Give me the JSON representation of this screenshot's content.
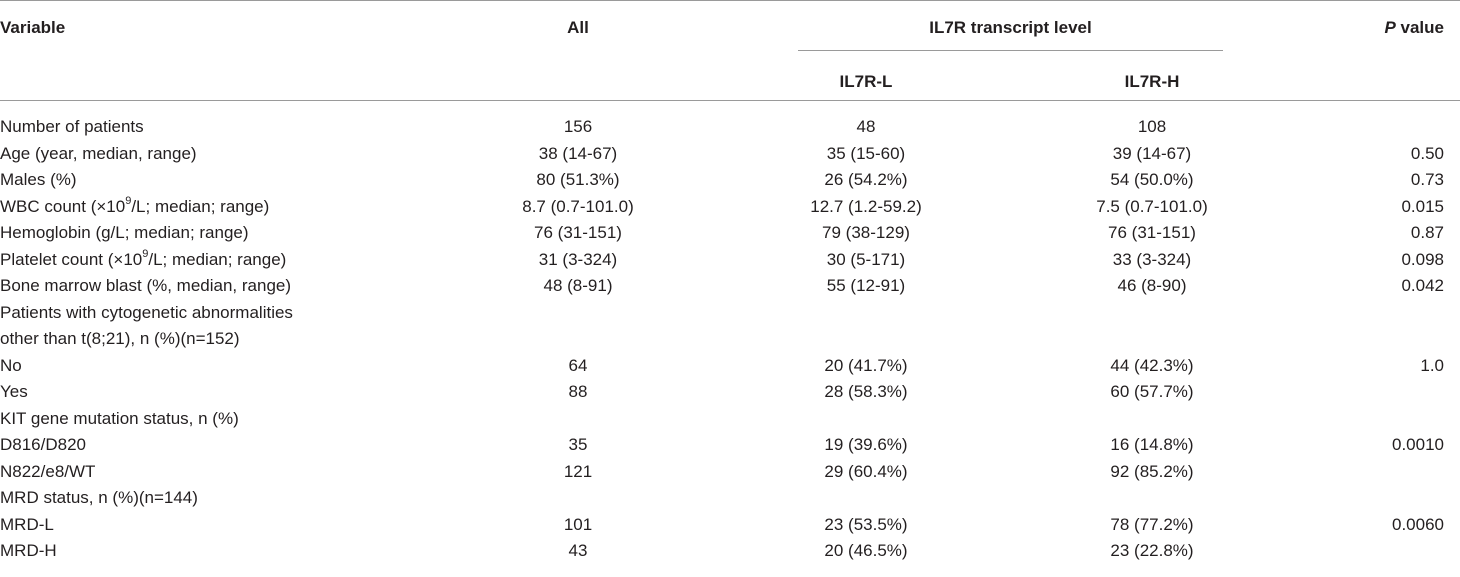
{
  "headers": {
    "variable": "Variable",
    "all": "All",
    "group": "IL7R transcript level",
    "low": "IL7R-L",
    "high": "IL7R-H",
    "p_italic": "P",
    "p_rest": " value"
  },
  "rows": [
    {
      "v": "Number of patients",
      "a": "156",
      "l": "48",
      "h": "108",
      "p": ""
    },
    {
      "v": "Age (year, median, range)",
      "a": "38 (14-67)",
      "l": "35 (15-60)",
      "h": "39 (14-67)",
      "p": "0.50"
    },
    {
      "v": "Males (%)",
      "a": "80 (51.3%)",
      "l": "26 (54.2%)",
      "h": "54 (50.0%)",
      "p": "0.73"
    },
    {
      "v_pre": "WBC count (×10",
      "v_sup": "9",
      "v_post": "/L; median; range)",
      "a": "8.7 (0.7-101.0)",
      "l": "12.7 (1.2-59.2)",
      "h": "7.5 (0.7-101.0)",
      "p": "0.015"
    },
    {
      "v": "Hemoglobin (g/L; median; range)",
      "a": "76 (31-151)",
      "l": "79 (38-129)",
      "h": "76 (31-151)",
      "p": "0.87"
    },
    {
      "v_pre": "Platelet count (×10",
      "v_sup": "9",
      "v_post": "/L; median; range)",
      "a": "31 (3-324)",
      "l": "30 (5-171)",
      "h": "33 (3-324)",
      "p": "0.098"
    },
    {
      "v": "Bone marrow blast (%, median, range)",
      "a": "48 (8-91)",
      "l": "55 (12-91)",
      "h": "46 (8-90)",
      "p": "0.042"
    },
    {
      "v": "Patients with cytogenetic abnormalities",
      "a": "",
      "l": "",
      "h": "",
      "p": ""
    },
    {
      "v": "other than t(8;21), n (%)(n=152)",
      "a": "",
      "l": "",
      "h": "",
      "p": ""
    },
    {
      "v": "No",
      "a": "64",
      "l": "20 (41.7%)",
      "h": "44 (42.3%)",
      "p": "1.0"
    },
    {
      "v": "Yes",
      "a": "88",
      "l": "28 (58.3%)",
      "h": "60 (57.7%)",
      "p": ""
    },
    {
      "v": "KIT gene mutation status, n (%)",
      "a": "",
      "l": "",
      "h": "",
      "p": ""
    },
    {
      "v": "D816/D820",
      "a": "35",
      "l": "19 (39.6%)",
      "h": "16 (14.8%)",
      "p": "0.0010"
    },
    {
      "v": "N822/e8/WT",
      "a": "121",
      "l": "29 (60.4%)",
      "h": "92 (85.2%)",
      "p": ""
    },
    {
      "v": "MRD status, n (%)(n=144)",
      "a": "",
      "l": "",
      "h": "",
      "p": ""
    },
    {
      "v": "MRD-L",
      "a": "101",
      "l": "23 (53.5%)",
      "h": "78 (77.2%)",
      "p": "0.0060"
    },
    {
      "v": "MRD-H",
      "a": "43",
      "l": "20 (46.5%)",
      "h": "23 (22.8%)",
      "p": ""
    }
  ]
}
